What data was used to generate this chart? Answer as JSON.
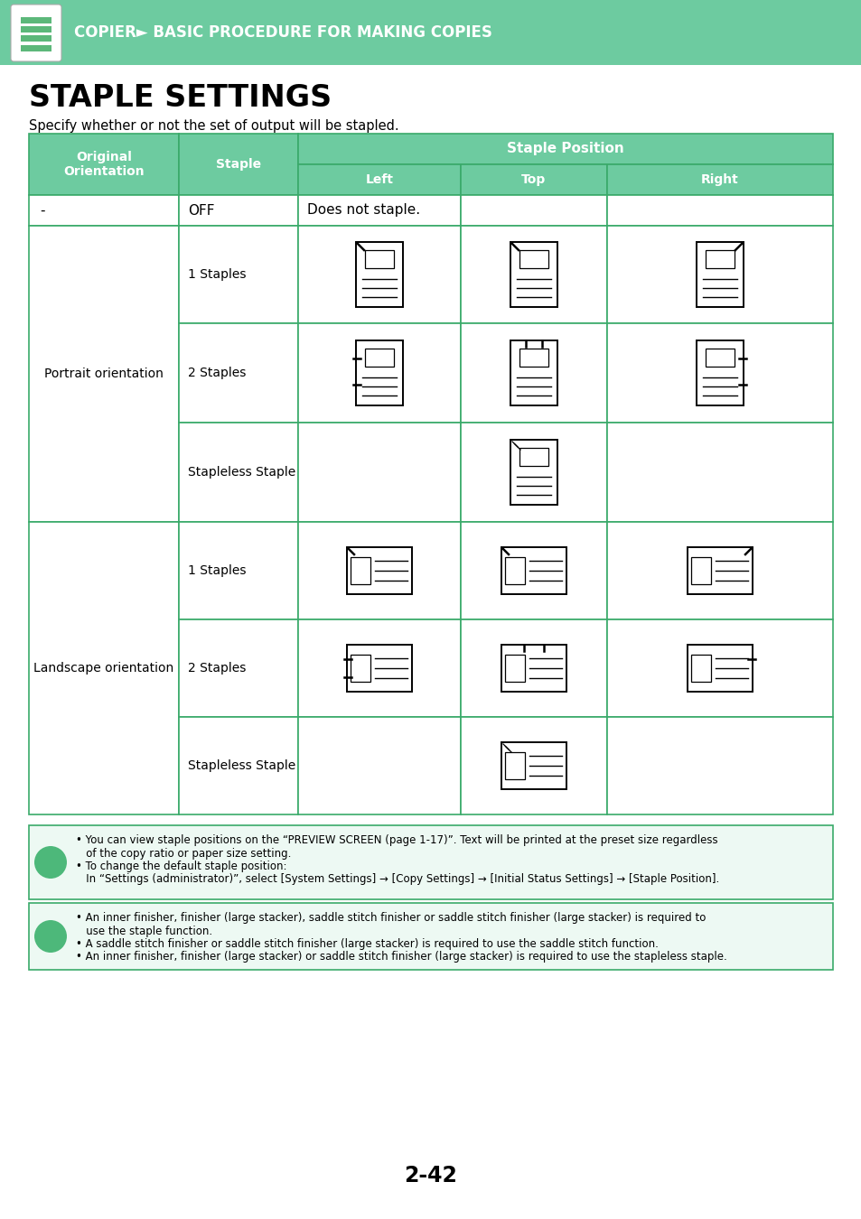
{
  "header_bg": "#6dcba0",
  "page_bg": "#ffffff",
  "title": "STAPLE SETTINGS",
  "subtitle": "Specify whether or not the set of output will be stapled.",
  "header_bar_text": "COPIER► BASIC PROCEDURE FOR MAKING COPIES",
  "note1_lines": [
    "• You can view staple positions on the “PREVIEW SCREEN (page 1-17)”. Text will be printed at the preset size regardless",
    "   of the copy ratio or paper size setting.",
    "• To change the default staple position:",
    "   In “Settings (administrator)”, select [System Settings] → [Copy Settings] → [Initial Status Settings] → [Staple Position]."
  ],
  "note2_lines": [
    "• An inner finisher, finisher (large stacker), saddle stitch finisher or saddle stitch finisher (large stacker) is required to",
    "   use the staple function.",
    "• A saddle stitch finisher or saddle stitch finisher (large stacker) is required to use the saddle stitch function.",
    "• An inner finisher, finisher (large stacker) or saddle stitch finisher (large stacker) is required to use the stapleless staple."
  ],
  "page_number": "2-42",
  "green": "#6dcba0",
  "border": "#3aaa6a",
  "icon_green": "#4db87a"
}
